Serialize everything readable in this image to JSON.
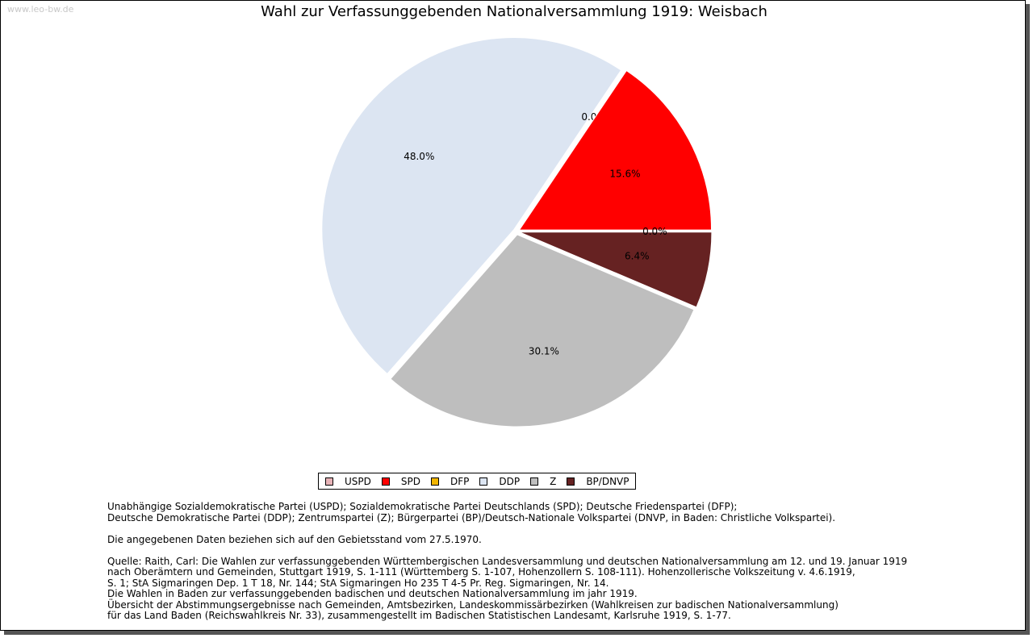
{
  "watermark": "www.leo-bw.de",
  "chart_data": {
    "type": "pie",
    "title": "Wahl zur Verfassunggebenden Nationalversammlung 1919: Weisbach",
    "slices": [
      {
        "name": "BP/DNVP",
        "value": 6.4,
        "label": "6.4%",
        "color": "#662222"
      },
      {
        "name": "Z",
        "value": 30.1,
        "label": "30.1%",
        "color": "#bebebe"
      },
      {
        "name": "DDP",
        "value": 48.0,
        "label": "48.0%",
        "color": "#dce5f2"
      },
      {
        "name": "DFP",
        "value": 0.0,
        "label": "0.0%",
        "color": "#f0b400"
      },
      {
        "name": "SPD",
        "value": 15.6,
        "label": "15.6%",
        "color": "#ff0000"
      },
      {
        "name": "USPD",
        "value": 0.0,
        "label": "0.0%",
        "color": "#e8b4b8"
      }
    ],
    "legend": [
      {
        "name": "USPD",
        "color": "#e8b4b8"
      },
      {
        "name": "SPD",
        "color": "#ff0000"
      },
      {
        "name": "DFP",
        "color": "#f0b400"
      },
      {
        "name": "DDP",
        "color": "#dce5f2"
      },
      {
        "name": "Z",
        "color": "#bebebe"
      },
      {
        "name": "BP/DNVP",
        "color": "#662222"
      }
    ],
    "legend_position": "bottom-center"
  },
  "notes": {
    "parties": "Unabhängige Sozialdemokratische Partei (USPD); Sozialdemokratische Partei Deutschlands (SPD); Deutsche Friedenspartei (DFP);\nDeutsche Demokratische Partei (DDP); Zentrumspartei (Z); Bürgerpartei (BP)/Deutsch-Nationale Volkspartei (DNVP, in Baden: Christliche Volkspartei).",
    "territory": "Die angegebenen Daten beziehen sich auf den Gebietsstand vom 27.5.1970.",
    "source": "Quelle: Raith, Carl: Die Wahlen zur verfassunggebenden Württembergischen Landesversammlung und deutschen Nationalversammlung am 12. und 19. Januar 1919\nnach Oberämtern und Gemeinden, Stuttgart 1919, S. 1-111 (Württemberg S. 1-107, Hohenzollern S. 108-111). Hohenzollerische Volkszeitung v. 4.6.1919,\nS. 1; StA Sigmaringen Dep. 1 T 18, Nr. 144; StA Sigmaringen Ho 235 T 4-5 Pr. Reg. Sigmaringen, Nr. 14.\nDie Wahlen in Baden zur verfassunggebenden badischen und deutschen Nationalversammlung im jahr 1919.\nÜbersicht der Abstimmungsergebnisse nach Gemeinden, Amtsbezirken, Landeskommissärbezirken (Wahlkreisen zur badischen Nationalversammlung)\nfür das Land Baden (Reichswahlkreis Nr. 33), zusammengestellt im Badischen Statistischen Landesamt, Karlsruhe 1919, S. 1-77."
  }
}
